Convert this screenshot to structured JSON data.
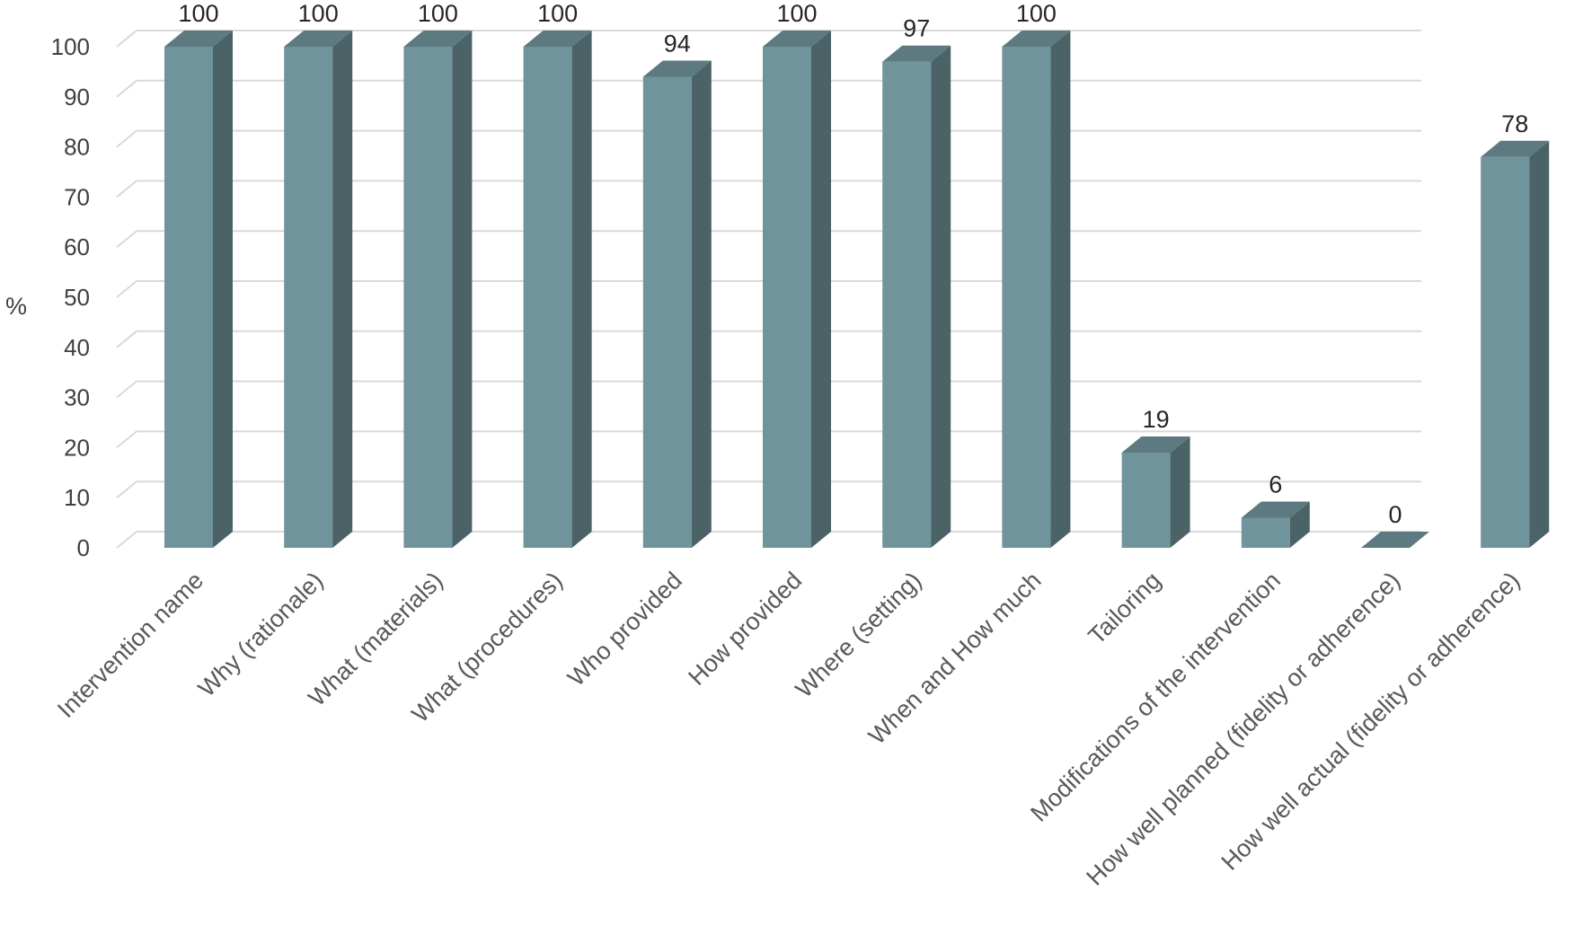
{
  "chart_data": {
    "type": "bar",
    "style": "3d-column",
    "ylabel": "%",
    "ylim": [
      0,
      100
    ],
    "ytick_step": 10,
    "grid": true,
    "legend": "none",
    "bar_color": "#6f949b",
    "bar_side_color": "#4b6266",
    "bar_top_color": "#5c7a80",
    "categories": [
      "Intervention name",
      "Why (rationale)",
      "What (materials)",
      "What (procedures)",
      "Who provided",
      "How provided",
      "Where (setting)",
      "When and How much",
      "Tailoring",
      "Modifications of the intervention",
      "How well planned (fidelity or adherence)",
      "How well actual (fidelity or adherence)"
    ],
    "values": [
      100,
      100,
      100,
      100,
      94,
      100,
      97,
      100,
      19,
      6,
      0,
      78
    ]
  }
}
